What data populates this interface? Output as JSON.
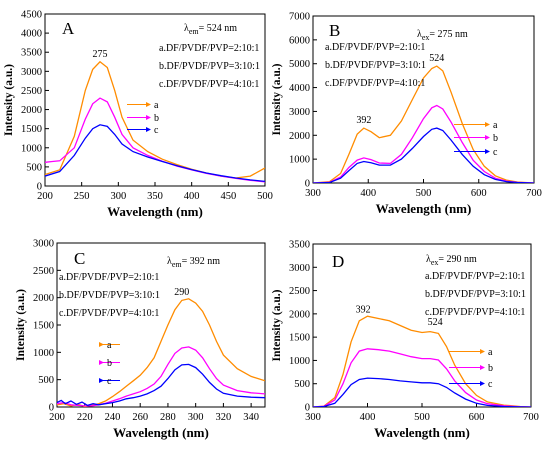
{
  "chart_data": [
    {
      "panel": "A",
      "type": "line",
      "title_html": [
        "λ",
        "em",
        "= 524 nm"
      ],
      "legend": [
        "a.DF/PVDF/PVP=2:10:1",
        "b.DF/PVDF/PVP=3:10:1",
        "c.DF/PVDF/PVP=4:10:1"
      ],
      "peak_labels": [
        {
          "text": "275",
          "x": 275,
          "y": 3250
        }
      ],
      "xlabel": "Wavelength (nm)",
      "ylabel": "Intensity (a.u.)",
      "xlim": [
        200,
        500
      ],
      "ylim": [
        0,
        4500
      ],
      "xticks": [
        200,
        250,
        300,
        350,
        400,
        450,
        500
      ],
      "yticks": [
        0,
        500,
        1000,
        1500,
        2000,
        2500,
        3000,
        3500,
        4000,
        4500
      ],
      "series": [
        {
          "letter": "a",
          "color": "#ff8c00",
          "x": [
            200,
            220,
            240,
            255,
            265,
            275,
            285,
            295,
            305,
            320,
            340,
            360,
            380,
            400,
            420,
            440,
            460,
            480,
            500
          ],
          "y": [
            300,
            420,
            1300,
            2500,
            3050,
            3250,
            3100,
            2500,
            1800,
            1200,
            900,
            700,
            560,
            440,
            340,
            260,
            210,
            260,
            470
          ]
        },
        {
          "letter": "b",
          "color": "#ff00ff",
          "x": [
            200,
            210,
            220,
            240,
            255,
            265,
            275,
            285,
            295,
            305,
            320,
            340,
            360,
            380,
            400,
            420,
            440,
            460,
            480,
            500
          ],
          "y": [
            620,
            640,
            660,
            1000,
            1750,
            2150,
            2300,
            2200,
            1800,
            1350,
            1000,
            800,
            650,
            520,
            420,
            330,
            260,
            200,
            150,
            110
          ]
        },
        {
          "letter": "c",
          "color": "#0000ff",
          "x": [
            200,
            220,
            240,
            255,
            265,
            275,
            285,
            295,
            305,
            320,
            340,
            360,
            380,
            400,
            420,
            440,
            460,
            480,
            500
          ],
          "y": [
            260,
            380,
            800,
            1250,
            1500,
            1600,
            1560,
            1350,
            1100,
            900,
            760,
            640,
            530,
            430,
            340,
            270,
            210,
            160,
            120
          ]
        }
      ]
    },
    {
      "panel": "B",
      "type": "line",
      "title_html": [
        "λ",
        "ex",
        "= 275 nm"
      ],
      "legend": [
        "a.DF/PVDF/PVP=2:10:1",
        "b.DF/PVDF/PVP=3:10:1",
        "c.DF/PVDF/PVP=4:10:1"
      ],
      "peak_labels": [
        {
          "text": "392",
          "x": 392,
          "y": 2300
        },
        {
          "text": "524",
          "x": 524,
          "y": 4900
        }
      ],
      "xlabel": "Wavelength (nm)",
      "ylabel": "Intensity (a.u.)",
      "xlim": [
        300,
        700
      ],
      "ylim": [
        0,
        7000
      ],
      "xticks": [
        300,
        400,
        500,
        600,
        700
      ],
      "yticks": [
        0,
        1000,
        2000,
        3000,
        4000,
        5000,
        6000,
        7000
      ],
      "series": [
        {
          "letter": "a",
          "color": "#ff8c00",
          "x": [
            300,
            330,
            350,
            365,
            380,
            392,
            405,
            420,
            440,
            460,
            480,
            500,
            515,
            524,
            535,
            550,
            570,
            590,
            610,
            630,
            650,
            670,
            700
          ],
          "y": [
            0,
            60,
            400,
            1200,
            2050,
            2300,
            2150,
            1900,
            2000,
            2600,
            3500,
            4400,
            4800,
            4900,
            4700,
            3800,
            2500,
            1400,
            700,
            300,
            120,
            40,
            0
          ]
        },
        {
          "letter": "b",
          "color": "#ff00ff",
          "x": [
            300,
            330,
            350,
            365,
            380,
            392,
            405,
            420,
            440,
            460,
            480,
            500,
            515,
            524,
            535,
            550,
            570,
            590,
            610,
            630,
            650,
            670,
            700
          ],
          "y": [
            0,
            30,
            250,
            650,
            960,
            1050,
            980,
            840,
            820,
            1200,
            1900,
            2700,
            3150,
            3250,
            3100,
            2550,
            1700,
            950,
            480,
            200,
            80,
            25,
            0
          ]
        },
        {
          "letter": "c",
          "color": "#0000ff",
          "x": [
            300,
            330,
            350,
            365,
            380,
            392,
            405,
            420,
            440,
            460,
            480,
            500,
            515,
            524,
            535,
            550,
            570,
            590,
            610,
            630,
            650,
            670,
            700
          ],
          "y": [
            0,
            20,
            200,
            520,
            820,
            900,
            850,
            750,
            750,
            1000,
            1450,
            1950,
            2250,
            2300,
            2200,
            1800,
            1200,
            700,
            350,
            150,
            60,
            20,
            0
          ]
        }
      ]
    },
    {
      "panel": "C",
      "type": "line",
      "title_html": [
        "λ",
        "em",
        "= 392 nm"
      ],
      "legend": [
        "a.DF/PVDF/PVP=2:10:1",
        "b.DF/PVDF/PVP=3:10:1",
        "c.DF/PVDF/PVP=4:10:1"
      ],
      "peak_labels": [
        {
          "text": "290",
          "x": 290,
          "y": 1960
        }
      ],
      "xlabel": "Wavelength (nm)",
      "ylabel": "Intensity (a.u.)",
      "xlim": [
        200,
        350
      ],
      "ylim": [
        0,
        3000
      ],
      "xticks": [
        200,
        220,
        240,
        260,
        280,
        300,
        320,
        340
      ],
      "yticks": [
        0,
        500,
        1000,
        1500,
        2000,
        2500,
        3000
      ],
      "series": [
        {
          "letter": "a",
          "color": "#ff8c00",
          "x": [
            200,
            205,
            210,
            215,
            220,
            225,
            230,
            235,
            240,
            245,
            250,
            255,
            260,
            265,
            270,
            275,
            280,
            285,
            290,
            295,
            300,
            305,
            310,
            315,
            320,
            330,
            340,
            350
          ],
          "y": [
            40,
            60,
            20,
            50,
            10,
            30,
            60,
            110,
            190,
            280,
            380,
            480,
            580,
            720,
            900,
            1200,
            1500,
            1780,
            1950,
            1980,
            1900,
            1750,
            1500,
            1200,
            950,
            700,
            560,
            480
          ]
        },
        {
          "letter": "b",
          "color": "#ff00ff",
          "x": [
            200,
            205,
            210,
            215,
            220,
            225,
            230,
            235,
            240,
            245,
            250,
            255,
            260,
            265,
            270,
            275,
            280,
            285,
            290,
            295,
            300,
            305,
            310,
            315,
            320,
            330,
            340,
            350
          ],
          "y": [
            60,
            80,
            40,
            30,
            20,
            20,
            40,
            70,
            110,
            150,
            200,
            240,
            280,
            340,
            420,
            560,
            780,
            980,
            1080,
            1100,
            1040,
            900,
            700,
            520,
            400,
            300,
            260,
            240
          ]
        },
        {
          "letter": "c",
          "color": "#0000ff",
          "x": [
            200,
            203,
            206,
            210,
            214,
            218,
            222,
            226,
            230,
            235,
            240,
            245,
            250,
            255,
            260,
            265,
            270,
            275,
            280,
            285,
            290,
            295,
            300,
            305,
            310,
            315,
            320,
            330,
            340,
            350
          ],
          "y": [
            80,
            120,
            60,
            110,
            50,
            90,
            30,
            60,
            40,
            60,
            80,
            110,
            150,
            170,
            200,
            240,
            300,
            380,
            520,
            680,
            770,
            780,
            720,
            600,
            450,
            330,
            250,
            200,
            180,
            170
          ]
        }
      ]
    },
    {
      "panel": "D",
      "type": "line",
      "title_html": [
        "λ",
        "ex",
        "= 290 nm"
      ],
      "legend": [
        "a.DF/PVDF/PVP=2:10:1",
        "b.DF/PVDF/PVP=3:10:1",
        "c.DF/PVDF/PVP=4:10:1"
      ],
      "peak_labels": [
        {
          "text": "392",
          "x": 392,
          "y": 1920
        },
        {
          "text": "524",
          "x": 524,
          "y": 1650
        }
      ],
      "xlabel": "Wavelength (nm)",
      "ylabel": "Intensity (a.u.)",
      "xlim": [
        300,
        700
      ],
      "ylim": [
        0,
        3500
      ],
      "xticks": [
        300,
        400,
        500,
        600,
        700
      ],
      "yticks": [
        0,
        500,
        1000,
        1500,
        2000,
        2500,
        3000,
        3500
      ],
      "series": [
        {
          "letter": "a",
          "color": "#ff8c00",
          "x": [
            300,
            320,
            340,
            355,
            370,
            385,
            400,
            420,
            440,
            460,
            480,
            500,
            515,
            530,
            545,
            560,
            580,
            600,
            620,
            650,
            680,
            700
          ],
          "y": [
            0,
            20,
            200,
            700,
            1400,
            1850,
            1950,
            1900,
            1850,
            1750,
            1650,
            1600,
            1620,
            1580,
            1300,
            900,
            500,
            250,
            110,
            40,
            10,
            0
          ]
        },
        {
          "letter": "b",
          "color": "#ff00ff",
          "x": [
            300,
            320,
            340,
            355,
            370,
            385,
            400,
            420,
            440,
            460,
            480,
            500,
            515,
            530,
            545,
            560,
            580,
            600,
            620,
            650,
            680,
            700
          ],
          "y": [
            0,
            15,
            150,
            500,
            950,
            1200,
            1250,
            1230,
            1200,
            1140,
            1080,
            1040,
            1040,
            1010,
            820,
            560,
            310,
            150,
            70,
            25,
            5,
            0
          ]
        },
        {
          "letter": "c",
          "color": "#0000ff",
          "x": [
            300,
            320,
            340,
            355,
            370,
            385,
            400,
            420,
            440,
            460,
            480,
            500,
            515,
            530,
            545,
            560,
            580,
            600,
            620,
            650,
            680,
            700
          ],
          "y": [
            0,
            10,
            80,
            270,
            480,
            590,
            620,
            610,
            590,
            560,
            540,
            520,
            520,
            500,
            420,
            300,
            170,
            80,
            35,
            10,
            2,
            0
          ]
        }
      ]
    }
  ]
}
